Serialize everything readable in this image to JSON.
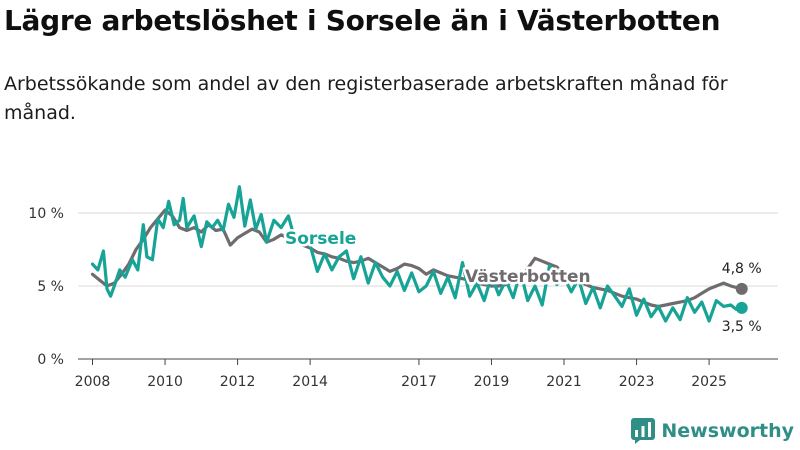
{
  "title": "Lägre arbetslöshet i Sorsele än i Västerbotten",
  "subtitle": "Arbetssökande som andel av den registerbaserade arbetskraften månad för månad.",
  "brand": {
    "name": "Newsworthy",
    "icon": "newsworthy-logo-icon"
  },
  "colors": {
    "sorsele": "#17a497",
    "vasterbotten": "#6f6b6e",
    "grid": "#d9d9d9",
    "axis": "#444444"
  },
  "chart_data": {
    "type": "line",
    "title": "Lägre arbetslöshet i Sorsele än i Västerbotten",
    "xlabel": "",
    "ylabel": "",
    "xlim": [
      2007.6,
      2026.9
    ],
    "ylim": [
      0,
      12
    ],
    "x_ticks": [
      2008,
      2010,
      2012,
      2014,
      2017,
      2019,
      2021,
      2023,
      2025
    ],
    "x_tick_labels": [
      "2008",
      "2010",
      "2012",
      "2014",
      "2017",
      "2019",
      "2021",
      "2023",
      "2025"
    ],
    "y_ticks": [
      0,
      5,
      10
    ],
    "y_tick_labels": [
      "0 %",
      "5 %",
      "10 %"
    ],
    "grid": true,
    "series": [
      {
        "name": "Sorsele",
        "label": "Sorsele",
        "end_label": "3,5 %",
        "x": [
          2008.0,
          2008.15,
          2008.3,
          2008.4,
          2008.5,
          2008.6,
          2008.75,
          2008.9,
          2009.1,
          2009.25,
          2009.4,
          2009.5,
          2009.65,
          2009.8,
          2009.95,
          2010.1,
          2010.25,
          2010.4,
          2010.5,
          2010.6,
          2010.8,
          2011.0,
          2011.15,
          2011.3,
          2011.45,
          2011.6,
          2011.75,
          2011.9,
          2012.05,
          2012.2,
          2012.35,
          2012.5,
          2012.65,
          2012.8,
          2013.0,
          2013.2,
          2013.4,
          2013.6,
          2013.8,
          2014.0,
          2014.2,
          2014.4,
          2014.6,
          2014.8,
          2015.0,
          2015.2,
          2015.4,
          2015.6,
          2015.8,
          2016.0,
          2016.2,
          2016.4,
          2016.6,
          2016.8,
          2017.0,
          2017.2,
          2017.4,
          2017.6,
          2017.8,
          2018.0,
          2018.2,
          2018.4,
          2018.6,
          2018.8,
          2019.0,
          2019.2,
          2019.4,
          2019.6,
          2019.8,
          2020.0,
          2020.2,
          2020.4,
          2020.6,
          2020.8,
          2021.0,
          2021.2,
          2021.4,
          2021.6,
          2021.8,
          2022.0,
          2022.2,
          2022.4,
          2022.6,
          2022.8,
          2023.0,
          2023.2,
          2023.4,
          2023.6,
          2023.8,
          2024.0,
          2024.2,
          2024.4,
          2024.6,
          2024.8,
          2025.0,
          2025.2,
          2025.4,
          2025.6,
          2025.75,
          2025.9
        ],
        "y": [
          6.5,
          6.1,
          7.4,
          4.8,
          4.3,
          5.0,
          6.1,
          5.6,
          6.8,
          6.1,
          9.2,
          7.0,
          6.8,
          9.6,
          9.0,
          10.8,
          9.2,
          9.5,
          11.0,
          9.0,
          9.8,
          7.7,
          9.4,
          9.0,
          9.5,
          8.8,
          10.6,
          9.7,
          11.8,
          9.1,
          10.9,
          8.9,
          9.9,
          8.0,
          9.5,
          9.0,
          9.8,
          8.0,
          8.4,
          7.8,
          6.0,
          7.2,
          6.1,
          7.0,
          7.4,
          5.5,
          7.0,
          5.2,
          6.6,
          5.6,
          5.0,
          6.0,
          4.7,
          5.9,
          4.6,
          5.0,
          6.0,
          4.5,
          5.6,
          4.2,
          6.6,
          4.3,
          5.2,
          4.0,
          5.7,
          4.4,
          5.4,
          4.2,
          6.0,
          4.0,
          5.0,
          3.7,
          6.4,
          5.1,
          5.6,
          4.6,
          5.5,
          3.8,
          4.9,
          3.5,
          5.0,
          4.3,
          3.6,
          4.8,
          3.0,
          4.1,
          2.9,
          3.6,
          2.6,
          3.5,
          2.7,
          4.2,
          3.2,
          3.9,
          2.6,
          4.0,
          3.6,
          3.7,
          3.4,
          3.5
        ]
      },
      {
        "name": "Västerbotten",
        "label": "Västerbotten",
        "end_label": "4,8 %",
        "x": [
          2008.0,
          2008.2,
          2008.4,
          2008.6,
          2008.8,
          2009.0,
          2009.2,
          2009.4,
          2009.6,
          2009.8,
          2010.0,
          2010.2,
          2010.4,
          2010.6,
          2010.8,
          2011.0,
          2011.2,
          2011.4,
          2011.6,
          2011.8,
          2012.0,
          2012.2,
          2012.4,
          2012.6,
          2012.8,
          2013.0,
          2013.2,
          2013.4,
          2013.6,
          2013.8,
          2014.0,
          2014.2,
          2014.4,
          2014.6,
          2014.8,
          2015.0,
          2015.2,
          2015.4,
          2015.6,
          2015.8,
          2016.0,
          2016.2,
          2016.4,
          2016.6,
          2016.8,
          2017.0,
          2017.2,
          2017.4,
          2017.6,
          2017.8,
          2018.0,
          2018.2,
          2018.4,
          2018.6,
          2018.8,
          2019.0,
          2019.2,
          2019.4,
          2019.6,
          2019.8,
          2020.0,
          2020.2,
          2020.4,
          2020.6,
          2020.8,
          2021.0,
          2021.2,
          2021.4,
          2021.6,
          2021.8,
          2022.0,
          2022.2,
          2022.4,
          2022.6,
          2022.8,
          2023.0,
          2023.2,
          2023.4,
          2023.6,
          2023.8,
          2024.0,
          2024.2,
          2024.4,
          2024.6,
          2024.8,
          2025.0,
          2025.2,
          2025.4,
          2025.6,
          2025.75,
          2025.9
        ],
        "y": [
          5.8,
          5.4,
          5.0,
          5.2,
          5.8,
          6.5,
          7.5,
          8.2,
          9.0,
          9.6,
          10.2,
          9.8,
          9.0,
          8.8,
          9.0,
          8.7,
          9.2,
          8.8,
          8.9,
          7.8,
          8.3,
          8.6,
          8.9,
          8.7,
          8.0,
          8.2,
          8.5,
          8.3,
          8.0,
          7.8,
          7.6,
          7.3,
          7.2,
          7.0,
          6.9,
          6.7,
          6.6,
          6.7,
          6.9,
          6.6,
          6.3,
          6.0,
          6.2,
          6.5,
          6.4,
          6.2,
          5.8,
          6.1,
          5.9,
          5.7,
          5.6,
          5.5,
          5.4,
          5.2,
          5.1,
          5.0,
          5.0,
          5.1,
          5.3,
          5.4,
          6.2,
          6.9,
          6.7,
          6.5,
          6.3,
          5.8,
          5.5,
          5.3,
          5.1,
          4.9,
          4.8,
          4.7,
          4.5,
          4.3,
          4.2,
          4.1,
          3.9,
          3.7,
          3.6,
          3.7,
          3.8,
          3.9,
          4.0,
          4.2,
          4.5,
          4.8,
          5.0,
          5.2,
          5.0,
          4.9,
          4.8
        ]
      }
    ]
  }
}
